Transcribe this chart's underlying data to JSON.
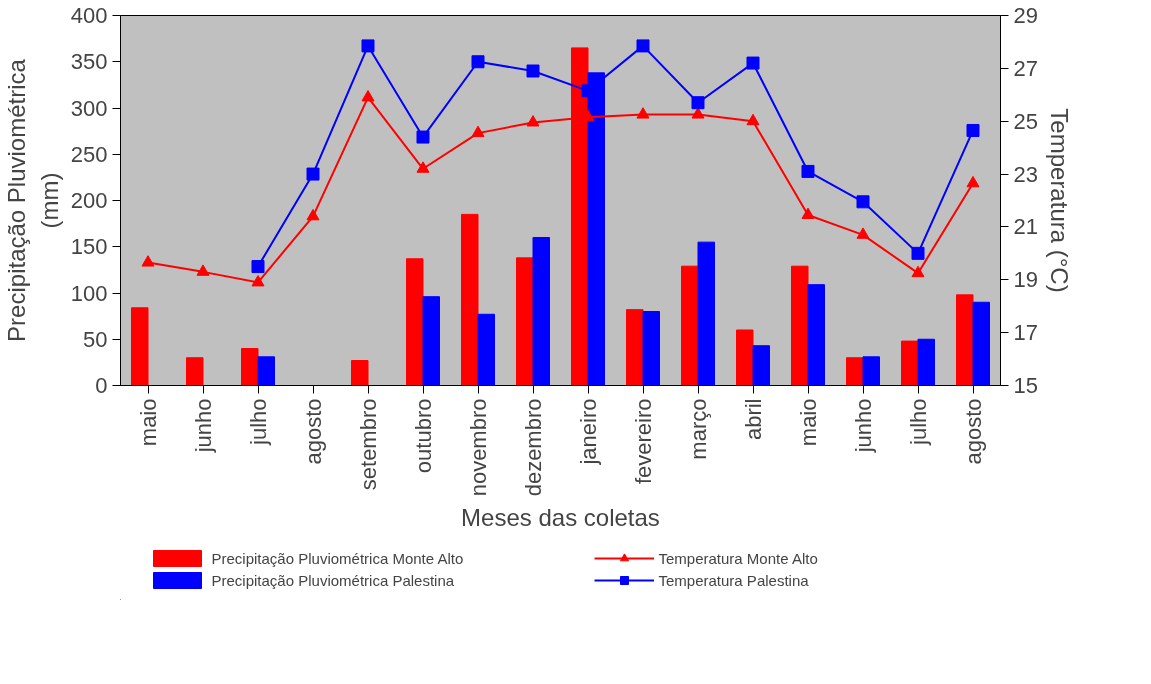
{
  "chart_data": {
    "type": "bar",
    "xlabel": "Meses das coletas",
    "ylabel": "Precipitação Pluviométrica (mm)",
    "y2label": "Temperatura (°C)",
    "categories": [
      "maio",
      "junho",
      "julho",
      "agosto",
      "setembro",
      "outubro",
      "novembro",
      "dezembro",
      "janeiro",
      "fevereiro",
      "março",
      "abril",
      "maio",
      "junho",
      "julho",
      "agosto"
    ],
    "ylim": [
      0,
      400
    ],
    "yticks": [
      0,
      50,
      100,
      150,
      200,
      250,
      300,
      350,
      400
    ],
    "y2lim": [
      15,
      29
    ],
    "y2ticks": [
      15,
      17,
      19,
      21,
      23,
      25,
      27,
      29
    ],
    "legend": "bottom",
    "series": [
      {
        "name": "Precipitação Pluviométrica Monte Alto",
        "color": "#ff0000",
        "values": [
          84,
          30,
          40,
          0,
          27,
          137,
          185,
          138,
          365,
          82,
          129,
          60,
          129,
          30,
          48,
          98
        ]
      },
      {
        "name": "Precipitação Pluviométrica Palestina",
        "color": "#0000ff",
        "values": [
          null,
          null,
          31,
          0,
          null,
          96,
          77,
          160,
          338,
          80,
          155,
          43,
          109,
          31,
          50,
          90
        ]
      },
      {
        "name": "Temperatura Monte Alto",
        "type": "line",
        "axis": "y2",
        "marker": "triangle",
        "color": "#ff0000",
        "values": [
          19.65,
          19.3,
          18.9,
          21.4,
          25.9,
          23.2,
          24.55,
          24.95,
          25.15,
          25.25,
          25.25,
          25.0,
          21.45,
          20.7,
          19.25,
          22.65
        ]
      },
      {
        "name": "Temperatura Palestina",
        "type": "line",
        "axis": "y2",
        "marker": "square",
        "color": "#0000ff",
        "values": [
          null,
          null,
          19.5,
          23.0,
          27.85,
          24.4,
          27.25,
          26.9,
          26.15,
          27.85,
          25.7,
          27.2,
          23.1,
          21.95,
          20.0,
          24.65
        ]
      }
    ]
  }
}
